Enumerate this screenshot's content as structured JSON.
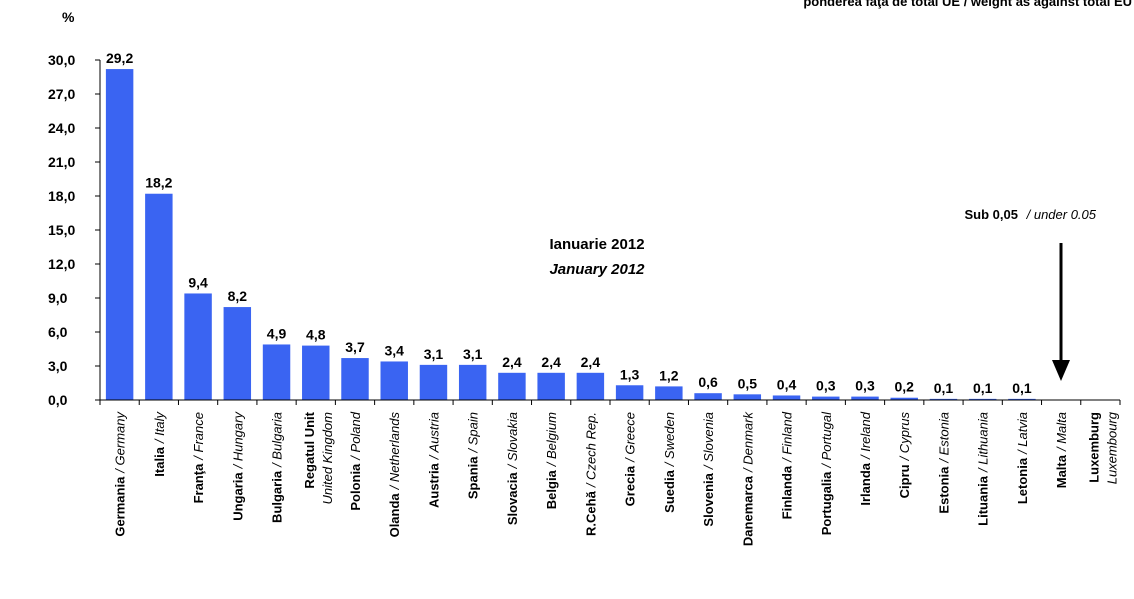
{
  "chart_data": {
    "type": "bar",
    "subtitle_top_right": "ponderea faţă de total UE / weight as against total EU",
    "ylabel": "%",
    "ylim": [
      0,
      30
    ],
    "yticks": [
      "0,0",
      "3,0",
      "6,0",
      "9,0",
      "12,0",
      "15,0",
      "18,0",
      "21,0",
      "24,0",
      "27,0",
      "30,0"
    ],
    "period_ro": "Ianuarie 2012",
    "period_en": "January 2012",
    "note_bold": "Sub 0,05",
    "note_italic": "/ under 0.05",
    "bar_color": "#3a64f2",
    "categories": [
      {
        "ro": "Germania",
        "en": "/ Germany",
        "value": 29.2,
        "label": "29,2"
      },
      {
        "ro": "Italia",
        "en": "/ Italy",
        "value": 18.2,
        "label": "18,2"
      },
      {
        "ro": "Franţa",
        "en": "/ France",
        "value": 9.4,
        "label": "9,4"
      },
      {
        "ro": "Ungaria",
        "en": "/ Hungary",
        "value": 8.2,
        "label": "8,2"
      },
      {
        "ro": "Bulgaria",
        "en": "/ Bulgaria",
        "value": 4.9,
        "label": "4,9"
      },
      {
        "ro": "Regatul Unit",
        "en": "United Kingdom",
        "value": 4.8,
        "label": "4,8"
      },
      {
        "ro": "Polonia",
        "en": "/ Poland",
        "value": 3.7,
        "label": "3,7"
      },
      {
        "ro": "Olanda",
        "en": "/ Netherlands",
        "value": 3.4,
        "label": "3,4"
      },
      {
        "ro": "Austria",
        "en": "/ Austria",
        "value": 3.1,
        "label": "3,1"
      },
      {
        "ro": "Spania",
        "en": "/ Spain",
        "value": 3.1,
        "label": "3,1"
      },
      {
        "ro": "Slovacia",
        "en": "/ Slovakia",
        "value": 2.4,
        "label": "2,4"
      },
      {
        "ro": "Belgia",
        "en": "/ Belgium",
        "value": 2.4,
        "label": "2,4"
      },
      {
        "ro": "R.Cehă",
        "en": "/ Czech Rep.",
        "value": 2.4,
        "label": "2,4"
      },
      {
        "ro": "Grecia",
        "en": "/ Greece",
        "value": 1.3,
        "label": "1,3"
      },
      {
        "ro": "Suedia",
        "en": "/ Sweden",
        "value": 1.2,
        "label": "1,2"
      },
      {
        "ro": "Slovenia",
        "en": "/ Slovenia",
        "value": 0.6,
        "label": "0,6"
      },
      {
        "ro": "Danemarca",
        "en": "/ Denmark",
        "value": 0.5,
        "label": "0,5"
      },
      {
        "ro": "Finlanda",
        "en": "/ Finland",
        "value": 0.4,
        "label": "0,4"
      },
      {
        "ro": "Portugalia",
        "en": "/ Portugal",
        "value": 0.3,
        "label": "0,3"
      },
      {
        "ro": "Irlanda",
        "en": "/ Ireland",
        "value": 0.3,
        "label": "0,3"
      },
      {
        "ro": "Cipru",
        "en": "/ Cyprus",
        "value": 0.2,
        "label": "0,2"
      },
      {
        "ro": "Estonia",
        "en": "/ Estonia",
        "value": 0.1,
        "label": "0,1"
      },
      {
        "ro": "Lituania",
        "en": "/ Lithuania",
        "value": 0.1,
        "label": "0,1"
      },
      {
        "ro": "Letonia",
        "en": "/ Latvia",
        "value": 0.1,
        "label": "0,1"
      },
      {
        "ro": "Malta",
        "en": "/ Malta",
        "value": 0,
        "label": ""
      },
      {
        "ro": "Luxemburg",
        "en": "Luxembourg",
        "value": 0,
        "label": ""
      }
    ]
  }
}
